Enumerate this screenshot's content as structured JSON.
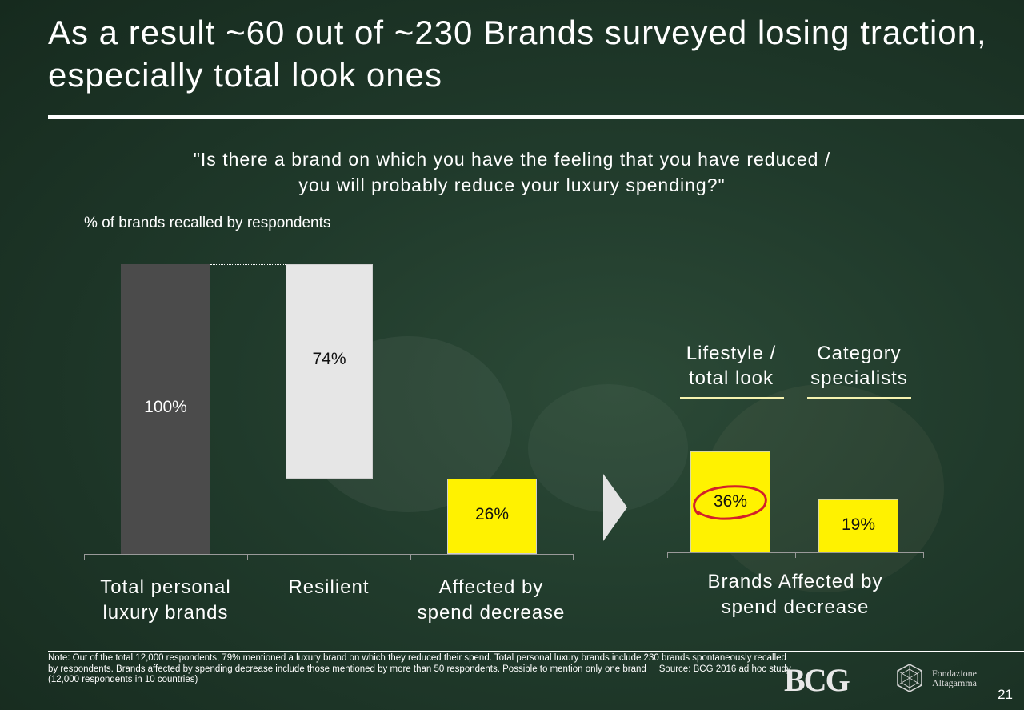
{
  "title": "As a result ~60 out of ~230 Brands surveyed losing traction, especially total look ones",
  "question": {
    "line1": "\"Is there a brand on which you have the feeling that you have reduced /",
    "line2": "you will probably reduce your luxury spending?\""
  },
  "unit_label": "% of brands recalled by respondents",
  "chart_data": [
    {
      "type": "bar",
      "subtype": "waterfall",
      "categories": [
        [
          "Total personal",
          "luxury brands"
        ],
        [
          "Resilient"
        ],
        [
          "Affected by",
          "spend decrease"
        ]
      ],
      "values": [
        100,
        74,
        26
      ],
      "value_labels": [
        "100%",
        "74%",
        "26%"
      ],
      "ylim": [
        0,
        100
      ],
      "colors": [
        "#4b4b4b",
        "#e6e6e6",
        "#fff200"
      ]
    },
    {
      "type": "bar",
      "category_label": [
        "Brands Affected by",
        "spend decrease"
      ],
      "group_headers": [
        [
          "Lifestyle /",
          "total look"
        ],
        [
          "Category",
          "specialists"
        ]
      ],
      "values": [
        36,
        19
      ],
      "value_labels": [
        "36%",
        "19%"
      ],
      "ylim": [
        0,
        100
      ],
      "highlighted": "36%",
      "colors": [
        "#fff200",
        "#fff200"
      ]
    }
  ],
  "note": "Note: Out of the total 12,000 respondents, 79% mentioned a luxury brand on which they reduced their spend. Total personal luxury brands include 230 brands spontaneously recalled by respondents. Brands affected by spending decrease include those mentioned by more than 50 respondents. Possible to mention only one brand",
  "source": "Source: BCG 2016 ad hoc study (12,000 respondents in 10 countries)",
  "logos": {
    "bcg": "BCG",
    "fondazione_line1": "Fondazione",
    "fondazione_line2": "Altagamma"
  },
  "page_number": "21"
}
